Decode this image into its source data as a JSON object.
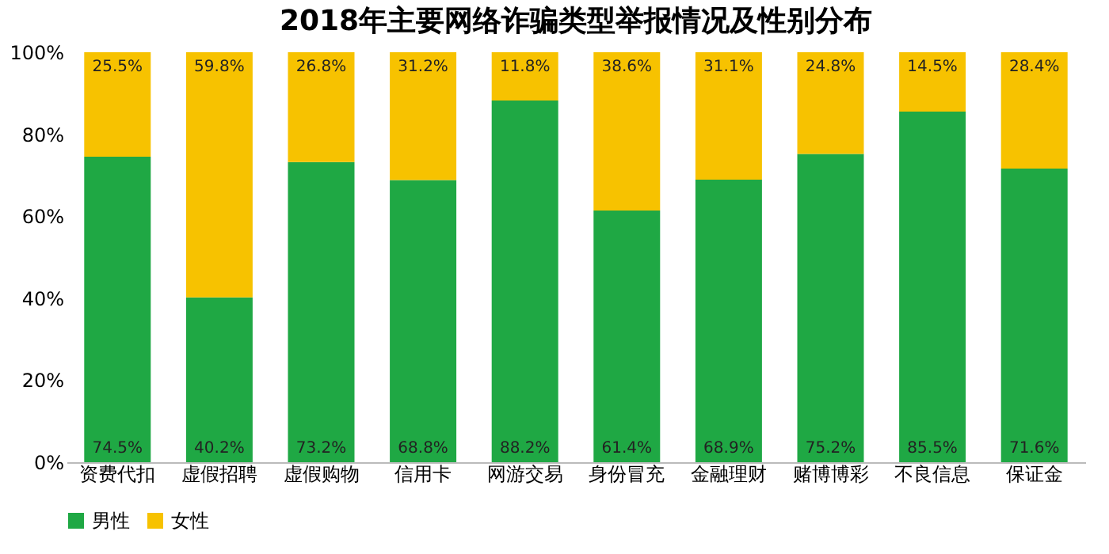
{
  "chart_data": {
    "type": "bar",
    "stacked": true,
    "title": "2018年主要网络诈骗类型举报情况及性别分布",
    "categories": [
      "资费代扣",
      "虚假招聘",
      "虚假购物",
      "信用卡",
      "网游交易",
      "身份冒充",
      "金融理财",
      "赌博博彩",
      "不良信息",
      "保证金"
    ],
    "series": [
      {
        "name": "男性",
        "color": "#1fa844",
        "values": [
          74.5,
          40.2,
          73.2,
          68.8,
          88.2,
          61.4,
          68.9,
          75.2,
          85.5,
          71.6
        ],
        "value_labels": [
          "74.5%",
          "40.2%",
          "73.2%",
          "68.8%",
          "88.2%",
          "61.4%",
          "68.9%",
          "75.2%",
          "85.5%",
          "71.6%"
        ]
      },
      {
        "name": "女性",
        "color": "#f7c200",
        "values": [
          25.5,
          59.8,
          26.8,
          31.2,
          11.8,
          38.6,
          31.1,
          24.8,
          14.5,
          28.4
        ],
        "value_labels": [
          "25.5%",
          "59.8%",
          "26.8%",
          "31.2%",
          "11.8%",
          "38.6%",
          "31.1%",
          "24.8%",
          "14.5%",
          "28.4%"
        ]
      }
    ],
    "ylim": [
      0,
      100
    ],
    "yticks": [
      {
        "value": 0,
        "label": "0%"
      },
      {
        "value": 20,
        "label": "20%"
      },
      {
        "value": 40,
        "label": "40%"
      },
      {
        "value": 60,
        "label": "60%"
      },
      {
        "value": 80,
        "label": "80%"
      },
      {
        "value": 100,
        "label": "100%"
      }
    ],
    "grid": false,
    "legend": "bottom"
  }
}
